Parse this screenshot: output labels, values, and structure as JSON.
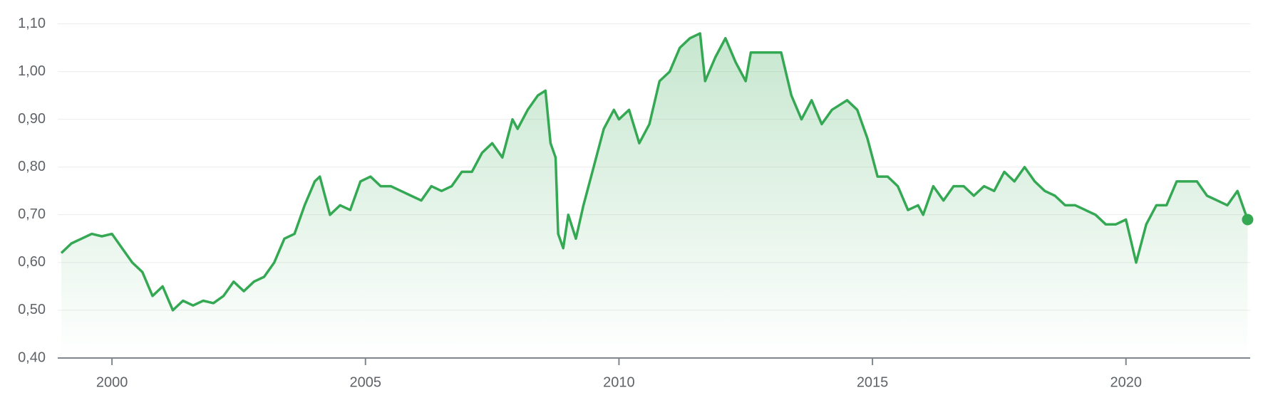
{
  "chart_data": {
    "type": "line",
    "x": [
      1999.0,
      1999.2,
      1999.4,
      1999.6,
      1999.8,
      2000.0,
      2000.2,
      2000.4,
      2000.6,
      2000.8,
      2001.0,
      2001.2,
      2001.4,
      2001.6,
      2001.8,
      2002.0,
      2002.2,
      2002.4,
      2002.6,
      2002.8,
      2003.0,
      2003.2,
      2003.4,
      2003.6,
      2003.8,
      2004.0,
      2004.1,
      2004.3,
      2004.5,
      2004.7,
      2004.9,
      2005.1,
      2005.3,
      2005.5,
      2005.7,
      2005.9,
      2006.1,
      2006.3,
      2006.5,
      2006.7,
      2006.9,
      2007.1,
      2007.3,
      2007.5,
      2007.7,
      2007.9,
      2008.0,
      2008.2,
      2008.4,
      2008.55,
      2008.65,
      2008.75,
      2008.8,
      2008.9,
      2009.0,
      2009.15,
      2009.3,
      2009.5,
      2009.7,
      2009.9,
      2010.0,
      2010.2,
      2010.4,
      2010.6,
      2010.8,
      2011.0,
      2011.2,
      2011.4,
      2011.6,
      2011.7,
      2011.9,
      2012.1,
      2012.3,
      2012.5,
      2012.6,
      2012.8,
      2013.0,
      2013.2,
      2013.4,
      2013.6,
      2013.8,
      2014.0,
      2014.2,
      2014.5,
      2014.7,
      2014.9,
      2015.1,
      2015.3,
      2015.5,
      2015.7,
      2015.9,
      2016.0,
      2016.2,
      2016.4,
      2016.6,
      2016.8,
      2017.0,
      2017.2,
      2017.4,
      2017.6,
      2017.8,
      2018.0,
      2018.2,
      2018.4,
      2018.6,
      2018.8,
      2019.0,
      2019.2,
      2019.4,
      2019.6,
      2019.8,
      2020.0,
      2020.2,
      2020.4,
      2020.6,
      2020.8,
      2021.0,
      2021.2,
      2021.4,
      2021.6,
      2021.8,
      2022.0,
      2022.2,
      2022.3,
      2022.4
    ],
    "values": [
      0.62,
      0.64,
      0.65,
      0.66,
      0.655,
      0.66,
      0.63,
      0.6,
      0.58,
      0.53,
      0.55,
      0.5,
      0.52,
      0.51,
      0.52,
      0.515,
      0.53,
      0.56,
      0.54,
      0.56,
      0.57,
      0.6,
      0.65,
      0.66,
      0.72,
      0.77,
      0.78,
      0.7,
      0.72,
      0.71,
      0.77,
      0.78,
      0.76,
      0.76,
      0.75,
      0.74,
      0.73,
      0.76,
      0.75,
      0.76,
      0.79,
      0.79,
      0.83,
      0.85,
      0.82,
      0.9,
      0.88,
      0.92,
      0.95,
      0.96,
      0.85,
      0.82,
      0.66,
      0.63,
      0.7,
      0.65,
      0.72,
      0.8,
      0.88,
      0.92,
      0.9,
      0.92,
      0.85,
      0.89,
      0.98,
      1.0,
      1.05,
      1.07,
      1.08,
      0.98,
      1.03,
      1.07,
      1.02,
      0.98,
      1.04,
      1.04,
      1.04,
      1.04,
      0.95,
      0.9,
      0.94,
      0.89,
      0.92,
      0.94,
      0.92,
      0.86,
      0.78,
      0.78,
      0.76,
      0.71,
      0.72,
      0.7,
      0.76,
      0.73,
      0.76,
      0.76,
      0.74,
      0.76,
      0.75,
      0.79,
      0.77,
      0.8,
      0.77,
      0.75,
      0.74,
      0.72,
      0.72,
      0.71,
      0.7,
      0.68,
      0.68,
      0.69,
      0.6,
      0.68,
      0.72,
      0.72,
      0.77,
      0.77,
      0.77,
      0.74,
      0.73,
      0.72,
      0.75,
      0.72,
      0.69
    ],
    "color": "#34a853",
    "xlim": [
      1998.93,
      2022.45
    ],
    "xticks": [
      2000,
      2005,
      2010,
      2015,
      2020
    ],
    "ylim": [
      0.4,
      1.15
    ],
    "yticks": [
      {
        "value": 0.4,
        "label": "0,40"
      },
      {
        "value": 0.5,
        "label": "0,50"
      },
      {
        "value": 0.6,
        "label": "0,60"
      },
      {
        "value": 0.7,
        "label": "0,70"
      },
      {
        "value": 0.8,
        "label": "0,80"
      },
      {
        "value": 0.9,
        "label": "0,90"
      },
      {
        "value": 1.0,
        "label": "1,00"
      },
      {
        "value": 1.1,
        "label": "1,10"
      }
    ],
    "grid": true
  }
}
